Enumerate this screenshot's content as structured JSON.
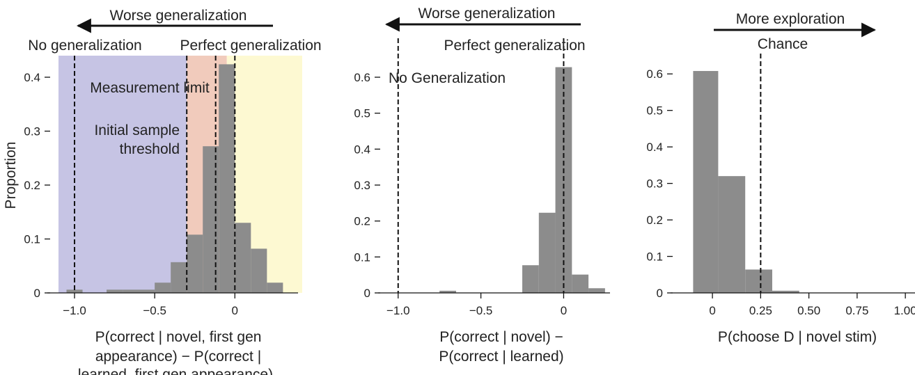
{
  "chart_data": [
    {
      "type": "bar",
      "ylabel": "Proportion",
      "xlabel_lines": [
        "P(correct | novel, first gen",
        "appearance) − P(correct |",
        "learned, first gen appearance)"
      ],
      "xlim": [
        -1.1,
        0.42
      ],
      "ylim": [
        0,
        0.44
      ],
      "xticks": [
        -1.0,
        -0.5,
        0
      ],
      "xtick_labels": [
        "−1.0",
        "−0.5",
        "0"
      ],
      "yticks": [
        0,
        0.1,
        0.2,
        0.3,
        0.4
      ],
      "ytick_labels": [
        "0",
        "0.1",
        "0.2",
        "0.3",
        "0.4"
      ],
      "bins": [
        {
          "x0": -1.05,
          "x1": -0.95,
          "value": 0.006
        },
        {
          "x0": -0.8,
          "x1": -0.7,
          "value": 0.006
        },
        {
          "x0": -0.7,
          "x1": -0.5,
          "value": 0.006
        },
        {
          "x0": -0.5,
          "x1": -0.4,
          "value": 0.019
        },
        {
          "x0": -0.4,
          "x1": -0.3,
          "value": 0.057
        },
        {
          "x0": -0.3,
          "x1": -0.2,
          "value": 0.108
        },
        {
          "x0": -0.2,
          "x1": -0.1,
          "value": 0.272
        },
        {
          "x0": -0.1,
          "x1": 0.0,
          "value": 0.424
        },
        {
          "x0": 0.0,
          "x1": 0.1,
          "value": 0.13
        },
        {
          "x0": 0.1,
          "x1": 0.2,
          "value": 0.082
        },
        {
          "x0": 0.2,
          "x1": 0.3,
          "value": 0.019
        }
      ],
      "regions": [
        {
          "x0": -1.1,
          "x1": -0.3,
          "y1": 0.44,
          "color": "#c6c4e4",
          "name": "region-below-threshold"
        },
        {
          "x0": -0.3,
          "x1": -0.05,
          "y1": 0.44,
          "color": "#f1cbbc",
          "name": "region-measurement-limit"
        },
        {
          "x0": -0.05,
          "x1": 0.42,
          "y1": 0.44,
          "color": "#fdf9d2",
          "name": "region-perfect"
        },
        {
          "x0": -0.3,
          "x1": -0.1,
          "y1": 0.44,
          "color": "#f1cbbc",
          "name": "region-limit-upper"
        }
      ],
      "vlines": [
        -1.0,
        -0.3,
        -0.12,
        0.0
      ],
      "arrow": {
        "text": "Worse generalization",
        "direction": "left"
      },
      "annotations": {
        "no_gen": "No generalization",
        "perfect_gen": "Perfect generalization",
        "measurement_limit": "Measurement limit",
        "initial_sample_line1": "Initial sample",
        "initial_sample_line2": "threshold"
      }
    },
    {
      "type": "bar",
      "xlabel_lines": [
        "P(correct | novel) −",
        "P(correct | learned)"
      ],
      "xlim": [
        -1.1,
        0.28
      ],
      "ylim": [
        0,
        0.66
      ],
      "xticks": [
        -1.0,
        -0.5,
        0
      ],
      "xtick_labels": [
        "−1.0",
        "−0.5",
        "0"
      ],
      "yticks": [
        0,
        0.1,
        0.2,
        0.3,
        0.4,
        0.5,
        0.6
      ],
      "ytick_labels": [
        "0",
        "0.1",
        "0.2",
        "0.3",
        "0.4",
        "0.5",
        "0.6"
      ],
      "bins": [
        {
          "x0": -0.75,
          "x1": -0.65,
          "value": 0.006
        },
        {
          "x0": -0.25,
          "x1": -0.15,
          "value": 0.077
        },
        {
          "x0": -0.15,
          "x1": -0.05,
          "value": 0.223
        },
        {
          "x0": -0.05,
          "x1": 0.05,
          "value": 0.628
        },
        {
          "x0": 0.05,
          "x1": 0.15,
          "value": 0.051
        },
        {
          "x0": 0.15,
          "x1": 0.25,
          "value": 0.013
        }
      ],
      "vlines": [
        -1.0,
        0.0
      ],
      "arrow": {
        "text": "Worse generalization",
        "direction": "left"
      },
      "annotations": {
        "no_gen": "No Generalization",
        "perfect_gen": "Perfect generalization"
      }
    },
    {
      "type": "bar",
      "xlabel_lines": [
        "P(choose D | novel stim)"
      ],
      "xlim": [
        -0.17,
        1.05
      ],
      "ylim": [
        0,
        0.65
      ],
      "xticks": [
        0,
        0.25,
        0.5,
        0.75,
        1.0
      ],
      "xtick_labels": [
        "0",
        "0.25",
        "0.50",
        "0.75",
        "1.00"
      ],
      "yticks": [
        0,
        0.1,
        0.2,
        0.3,
        0.4,
        0.5,
        0.6
      ],
      "ytick_labels": [
        "0",
        "0.1",
        "0.2",
        "0.3",
        "0.4",
        "0.5",
        "0.6"
      ],
      "bins": [
        {
          "x0": -0.1,
          "x1": 0.03,
          "value": 0.608
        },
        {
          "x0": 0.03,
          "x1": 0.17,
          "value": 0.32
        },
        {
          "x0": 0.17,
          "x1": 0.31,
          "value": 0.064
        },
        {
          "x0": 0.31,
          "x1": 0.45,
          "value": 0.006
        }
      ],
      "vlines": [
        0.25
      ],
      "arrow": {
        "text": "More exploration",
        "direction": "right"
      },
      "annotations": {
        "chance": "Chance"
      }
    }
  ]
}
